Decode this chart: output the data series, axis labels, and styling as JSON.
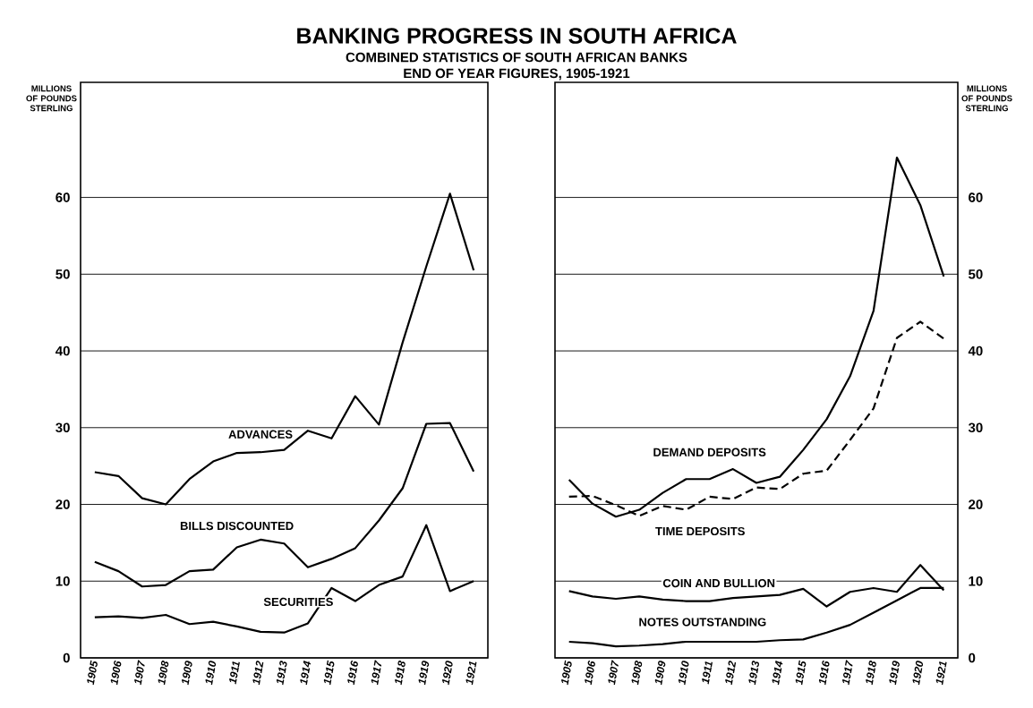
{
  "chart_data": [
    {
      "type": "line",
      "title": "BANKING PROGRESS IN SOUTH AFRICA",
      "subtitle": "COMBINED STATISTICS OF SOUTH AFRICAN BANKS",
      "annotations": [
        "END OF YEAR FIGURES, 1905-1921"
      ],
      "ylabel": "MILLIONS OF POUNDS STERLING",
      "categories": [
        "1905",
        "1906",
        "1907",
        "1908",
        "1909",
        "1910",
        "1911",
        "1912",
        "1913",
        "1914",
        "1915",
        "1916",
        "1917",
        "1918",
        "1919",
        "1920",
        "1921"
      ],
      "ylim": [
        0,
        75
      ],
      "yticks": [
        0,
        10,
        20,
        30,
        40,
        50,
        60
      ],
      "grid": "y",
      "marker": "none",
      "line_style": "solid",
      "series": [
        {
          "name": "ADVANCES",
          "color": "#000000",
          "values": [
            24.2,
            23.7,
            20.8,
            20.0,
            23.3,
            25.6,
            26.7,
            26.8,
            27.1,
            29.6,
            28.6,
            34.1,
            30.4,
            41.1,
            51,
            60.5,
            50.5
          ]
        },
        {
          "name": "BILLS DISCOUNTED",
          "color": "#000000",
          "values": [
            12.5,
            11.3,
            9.3,
            9.5,
            11.3,
            11.5,
            14.4,
            15.4,
            14.9,
            11.8,
            12.9,
            14.3,
            17.9,
            22.1,
            30.5,
            30.6,
            24.3
          ]
        },
        {
          "name": "SECURITIES",
          "color": "#000000",
          "values": [
            5.3,
            5.4,
            5.2,
            5.6,
            4.4,
            4.7,
            4.1,
            3.4,
            3.3,
            4.5,
            9.1,
            7.4,
            9.5,
            10.6,
            17.3,
            8.7,
            10.0
          ]
        }
      ]
    },
    {
      "type": "line",
      "ylabel": "MILLIONS OF POUNDS STERLING",
      "categories": [
        "1905",
        "1906",
        "1907",
        "1908",
        "1909",
        "1910",
        "1911",
        "1912",
        "1913",
        "1914",
        "1915",
        "1916",
        "1917",
        "1918",
        "1919",
        "1920",
        "1921"
      ],
      "ylim": [
        0,
        75
      ],
      "yticks": [
        0,
        10,
        20,
        30,
        40,
        50,
        60
      ],
      "grid": "y",
      "marker": "none",
      "line_style": "solid",
      "series": [
        {
          "name": "DEMAND DEPOSITS",
          "color": "#000000",
          "values": [
            23.2,
            20.1,
            18.4,
            19.3,
            21.5,
            23.3,
            23.3,
            24.6,
            22.8,
            23.6,
            27.1,
            31.1,
            36.7,
            45.2,
            65.2,
            59.0,
            49.7
          ]
        },
        {
          "name": "TIME DEPOSITS",
          "color": "#000000",
          "line_style": "dashed",
          "values": [
            21.0,
            21.1,
            19.9,
            18.5,
            19.8,
            19.3,
            21.0,
            20.7,
            22.2,
            22.0,
            24.0,
            24.4,
            28.4,
            32.5,
            41.7,
            43.8,
            41.6
          ]
        },
        {
          "name": "COIN AND BULLION",
          "color": "#000000",
          "values": [
            8.7,
            8.0,
            7.7,
            8.0,
            7.6,
            7.4,
            7.4,
            7.8,
            8.0,
            8.2,
            9.0,
            6.7,
            8.6,
            9.1,
            8.6,
            12.1,
            8.8
          ]
        },
        {
          "name": "NOTES OUTSTANDING",
          "color": "#000000",
          "values": [
            2.1,
            1.9,
            1.5,
            1.6,
            1.8,
            2.1,
            2.1,
            2.1,
            2.1,
            2.3,
            2.4,
            3.3,
            4.3,
            5.9,
            7.5,
            9.1,
            9.1
          ]
        }
      ]
    }
  ]
}
